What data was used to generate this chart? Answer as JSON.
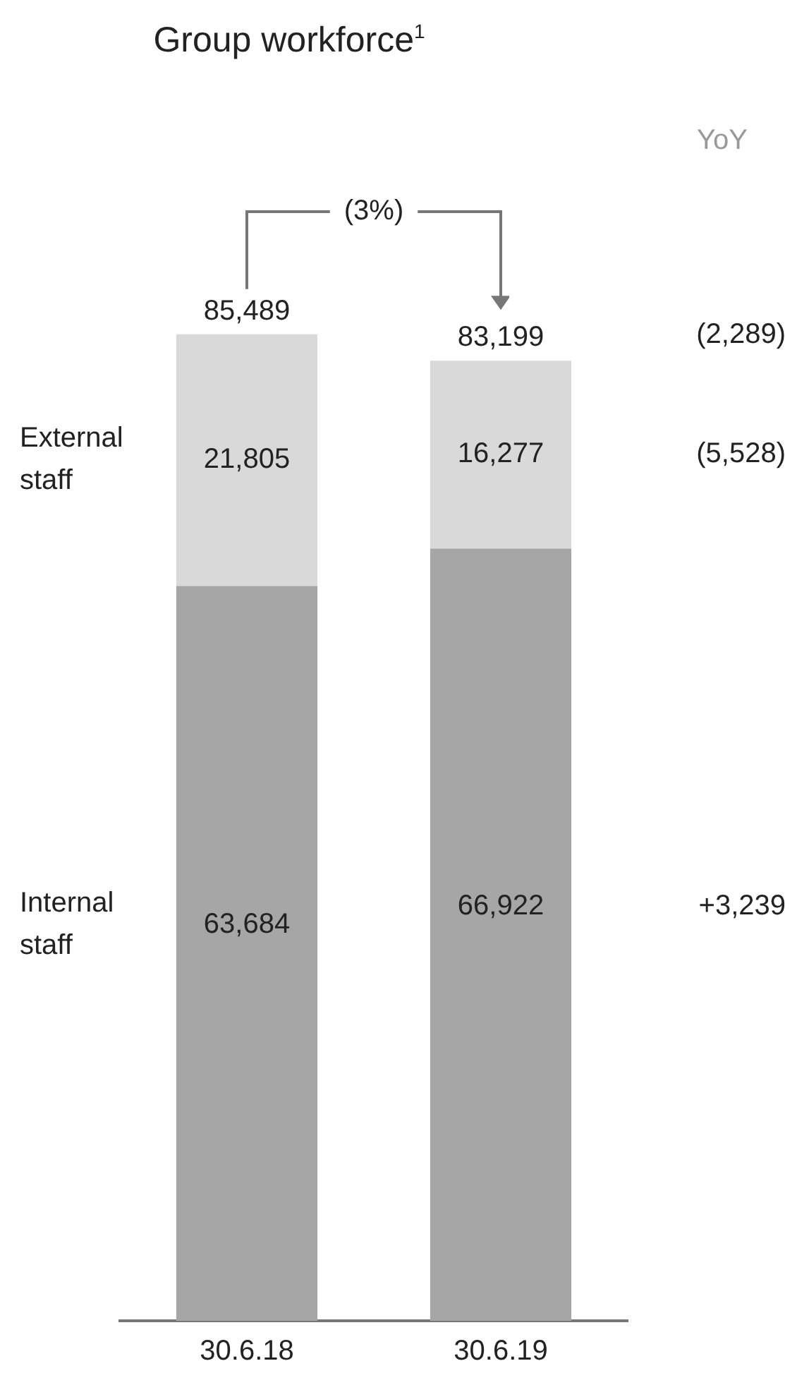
{
  "chart_data": {
    "type": "bar",
    "title": "Group workforce$^{1}$",
    "categories": [
      "30.6.18",
      "30.6.19"
    ],
    "stacked": true,
    "series": [
      {
        "name": "Internal staff",
        "color": "#a6a6a6",
        "values": [
          63684,
          66922
        ],
        "value_labels": [
          "63,684",
          "66,922"
        ]
      },
      {
        "name": "External staff",
        "color": "#d9d9d9",
        "values": [
          21805,
          16277
        ],
        "value_labels": [
          "21,805",
          "16,277"
        ]
      }
    ],
    "totals": [
      "85,489",
      "83,199"
    ],
    "legend": false,
    "grid": false,
    "annotations": [
      "YoY",
      "(2,289)",
      "+3,239",
      "(5,528)",
      "(3%)"
    ]
  }
}
